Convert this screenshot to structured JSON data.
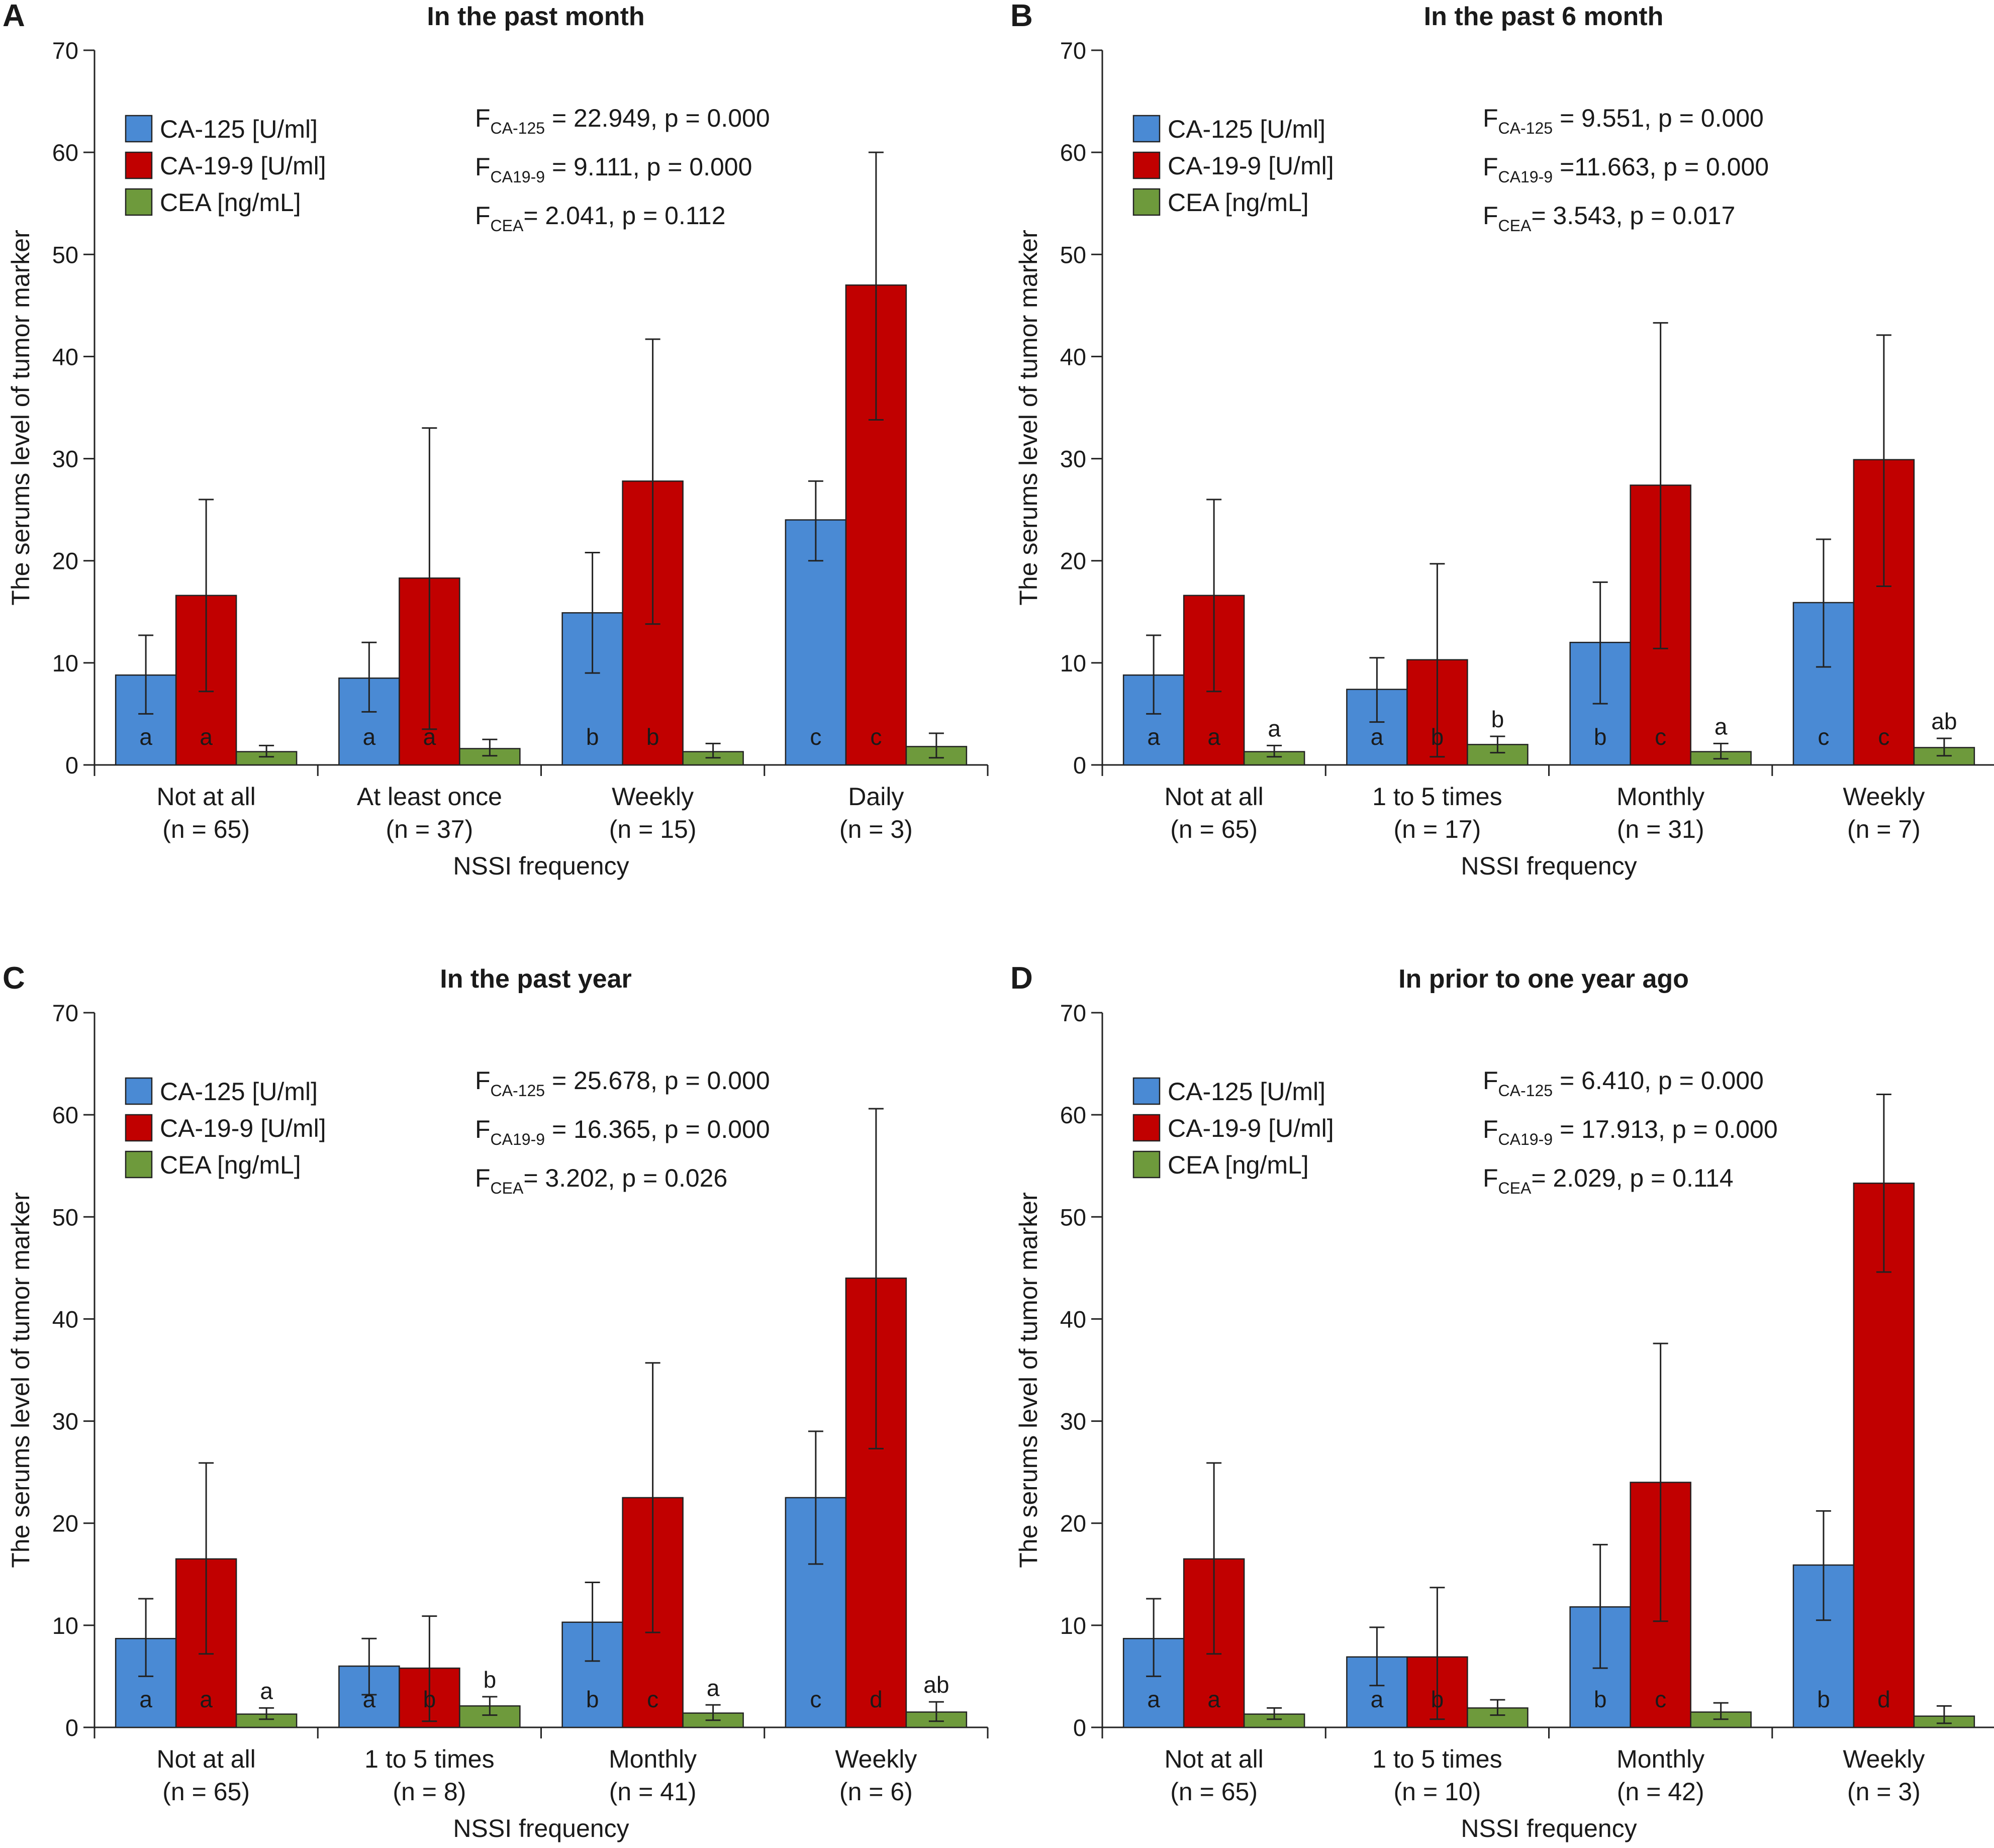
{
  "colors": {
    "CA-125": "#4a8ad4",
    "CA-19-9": "#c10000",
    "CEA": "#6e9a3c"
  },
  "y_axis_label": "The serums level of tumor marker",
  "x_axis_label": "NSSI frequency",
  "chart_data": [
    {
      "type": "bar",
      "panel": "A",
      "title": "In the past month",
      "xlabel": "NSSI frequency",
      "ylabel": "The serums level of tumor marker",
      "ylim": [
        0,
        70
      ],
      "yticks": [
        "0",
        "10",
        "20",
        "30",
        "40",
        "50",
        "60",
        "70"
      ],
      "categories": [
        "Not at all",
        "At least once",
        "Weekly",
        "Daily"
      ],
      "n_labels": [
        "(n = 65)",
        "(n = 37)",
        "(n = 15)",
        "(n = 3)"
      ],
      "legend": [
        "CA-125 [U/ml]",
        "CA-19-9 [U/ml]",
        "CEA [ng/mL]"
      ],
      "stats": [
        {
          "main": "F",
          "sub": "CA-125",
          "rest": " = 22.949, p = 0.000"
        },
        {
          "main": "F",
          "sub": "CA19-9",
          "rest": " = 9.111, p = 0.000"
        },
        {
          "main": "F",
          "sub": "CEA",
          "rest": "= 2.041, p = 0.112"
        }
      ],
      "series": [
        {
          "name": "CA-125",
          "values": [
            8.8,
            8.5,
            14.9,
            24.0
          ],
          "err_low": [
            5.0,
            5.2,
            9.0,
            20.0
          ],
          "err_high": [
            12.7,
            12.0,
            20.8,
            27.8
          ],
          "letters": [
            "a",
            "a",
            "b",
            "c"
          ]
        },
        {
          "name": "CA-19-9",
          "values": [
            16.6,
            18.3,
            27.8,
            47.0
          ],
          "err_low": [
            7.2,
            3.5,
            13.8,
            33.8
          ],
          "err_high": [
            26.0,
            33.0,
            41.7,
            60.0
          ],
          "letters": [
            "a",
            "a",
            "b",
            "c"
          ]
        },
        {
          "name": "CEA",
          "values": [
            1.3,
            1.6,
            1.3,
            1.8
          ],
          "err_low": [
            0.8,
            0.9,
            0.7,
            0.7
          ],
          "err_high": [
            1.9,
            2.5,
            2.1,
            3.1
          ],
          "letters": [
            "",
            "",
            "",
            ""
          ]
        }
      ]
    },
    {
      "type": "bar",
      "panel": "B",
      "title": "In the past 6 month",
      "xlabel": "NSSI frequency",
      "ylabel": "The serums level of tumor marker",
      "ylim": [
        0,
        70
      ],
      "yticks": [
        "0",
        "10",
        "20",
        "30",
        "40",
        "50",
        "60",
        "70"
      ],
      "categories": [
        "Not at all",
        "1 to 5 times",
        "Monthly",
        "Weekly"
      ],
      "n_labels": [
        "(n = 65)",
        "(n = 17)",
        "(n = 31)",
        "(n = 7)"
      ],
      "legend": [
        "CA-125 [U/ml]",
        "CA-19-9 [U/ml]",
        "CEA [ng/mL]"
      ],
      "stats": [
        {
          "main": "F",
          "sub": "CA-125",
          "rest": " = 9.551, p = 0.000"
        },
        {
          "main": "F",
          "sub": "CA19-9",
          "rest": " =11.663, p = 0.000"
        },
        {
          "main": "F",
          "sub": "CEA",
          "rest": "= 3.543, p = 0.017"
        }
      ],
      "series": [
        {
          "name": "CA-125",
          "values": [
            8.8,
            7.4,
            12.0,
            15.9
          ],
          "err_low": [
            5.0,
            4.2,
            6.0,
            9.6
          ],
          "err_high": [
            12.7,
            10.5,
            17.9,
            22.1
          ],
          "letters": [
            "a",
            "a",
            "b",
            "c"
          ]
        },
        {
          "name": "CA-19-9",
          "values": [
            16.6,
            10.3,
            27.4,
            29.9
          ],
          "err_low": [
            7.2,
            0.8,
            11.4,
            17.5
          ],
          "err_high": [
            26.0,
            19.7,
            43.3,
            42.1
          ],
          "letters": [
            "a",
            "b",
            "c",
            "c"
          ]
        },
        {
          "name": "CEA",
          "values": [
            1.3,
            2.0,
            1.3,
            1.7
          ],
          "err_low": [
            0.8,
            1.2,
            0.6,
            0.9
          ],
          "err_high": [
            1.9,
            2.8,
            2.1,
            2.6
          ],
          "letters": [
            "a",
            "b",
            "a",
            "ab"
          ]
        }
      ]
    },
    {
      "type": "bar",
      "panel": "C",
      "title": "In the past year",
      "xlabel": "NSSI frequency",
      "ylabel": "The serums level of tumor marker",
      "ylim": [
        0,
        70
      ],
      "yticks": [
        "0",
        "10",
        "20",
        "30",
        "40",
        "50",
        "60",
        "70"
      ],
      "categories": [
        "Not at all",
        "1 to 5 times",
        "Monthly",
        "Weekly"
      ],
      "n_labels": [
        "(n = 65)",
        "(n = 8)",
        "(n = 41)",
        "(n = 6)"
      ],
      "legend": [
        "CA-125 [U/ml]",
        "CA-19-9 [U/ml]",
        "CEA [ng/mL]"
      ],
      "stats": [
        {
          "main": "F",
          "sub": "CA-125",
          "rest": " = 25.678, p = 0.000"
        },
        {
          "main": "F",
          "sub": "CA19-9",
          "rest": " = 16.365, p = 0.000"
        },
        {
          "main": "F",
          "sub": "CEA",
          "rest": "= 3.202, p = 0.026"
        }
      ],
      "series": [
        {
          "name": "CA-125",
          "values": [
            8.7,
            6.0,
            10.3,
            22.5
          ],
          "err_low": [
            5.0,
            3.2,
            6.5,
            16.0
          ],
          "err_high": [
            12.6,
            8.7,
            14.2,
            29.0
          ],
          "letters": [
            "a",
            "a",
            "b",
            "c"
          ]
        },
        {
          "name": "CA-19-9",
          "values": [
            16.5,
            5.8,
            22.5,
            44.0
          ],
          "err_low": [
            7.2,
            0.6,
            9.3,
            27.3
          ],
          "err_high": [
            25.9,
            10.9,
            35.7,
            60.6
          ],
          "letters": [
            "a",
            "b",
            "c",
            "d"
          ]
        },
        {
          "name": "CEA",
          "values": [
            1.3,
            2.1,
            1.4,
            1.5
          ],
          "err_low": [
            0.8,
            1.2,
            0.7,
            0.6
          ],
          "err_high": [
            1.9,
            3.0,
            2.2,
            2.5
          ],
          "letters": [
            "a",
            "b",
            "a",
            "ab"
          ]
        }
      ]
    },
    {
      "type": "bar",
      "panel": "D",
      "title": "In prior to one year ago",
      "xlabel": "NSSI frequency",
      "ylabel": "The serums level of tumor marker",
      "ylim": [
        0,
        70
      ],
      "yticks": [
        "0",
        "10",
        "20",
        "30",
        "40",
        "50",
        "60",
        "70"
      ],
      "categories": [
        "Not at all",
        "1 to 5 times",
        "Monthly",
        "Weekly"
      ],
      "n_labels": [
        "(n = 65)",
        "(n = 10)",
        "(n = 42)",
        "(n = 3)"
      ],
      "legend": [
        "CA-125 [U/ml]",
        "CA-19-9 [U/ml]",
        "CEA [ng/mL]"
      ],
      "stats": [
        {
          "main": "F",
          "sub": "CA-125",
          "rest": " = 6.410, p = 0.000"
        },
        {
          "main": "F",
          "sub": "CA19-9",
          "rest": " = 17.913, p = 0.000"
        },
        {
          "main": "F",
          "sub": "CEA",
          "rest": "= 2.029, p = 0.114"
        }
      ],
      "series": [
        {
          "name": "CA-125",
          "values": [
            8.7,
            6.9,
            11.8,
            15.9
          ],
          "err_low": [
            5.0,
            4.1,
            5.8,
            10.5
          ],
          "err_high": [
            12.6,
            9.8,
            17.9,
            21.2
          ],
          "letters": [
            "a",
            "a",
            "b",
            "b"
          ]
        },
        {
          "name": "CA-19-9",
          "values": [
            16.5,
            6.9,
            24.0,
            53.3
          ],
          "err_low": [
            7.2,
            0.8,
            10.4,
            44.6
          ],
          "err_high": [
            25.9,
            13.7,
            37.6,
            62.0
          ],
          "letters": [
            "a",
            "b",
            "c",
            "d"
          ]
        },
        {
          "name": "CEA",
          "values": [
            1.3,
            1.9,
            1.5,
            1.1
          ],
          "err_low": [
            0.8,
            1.2,
            0.8,
            0.4
          ],
          "err_high": [
            1.9,
            2.7,
            2.4,
            2.1
          ],
          "letters": [
            "",
            "",
            "",
            ""
          ]
        }
      ]
    }
  ]
}
